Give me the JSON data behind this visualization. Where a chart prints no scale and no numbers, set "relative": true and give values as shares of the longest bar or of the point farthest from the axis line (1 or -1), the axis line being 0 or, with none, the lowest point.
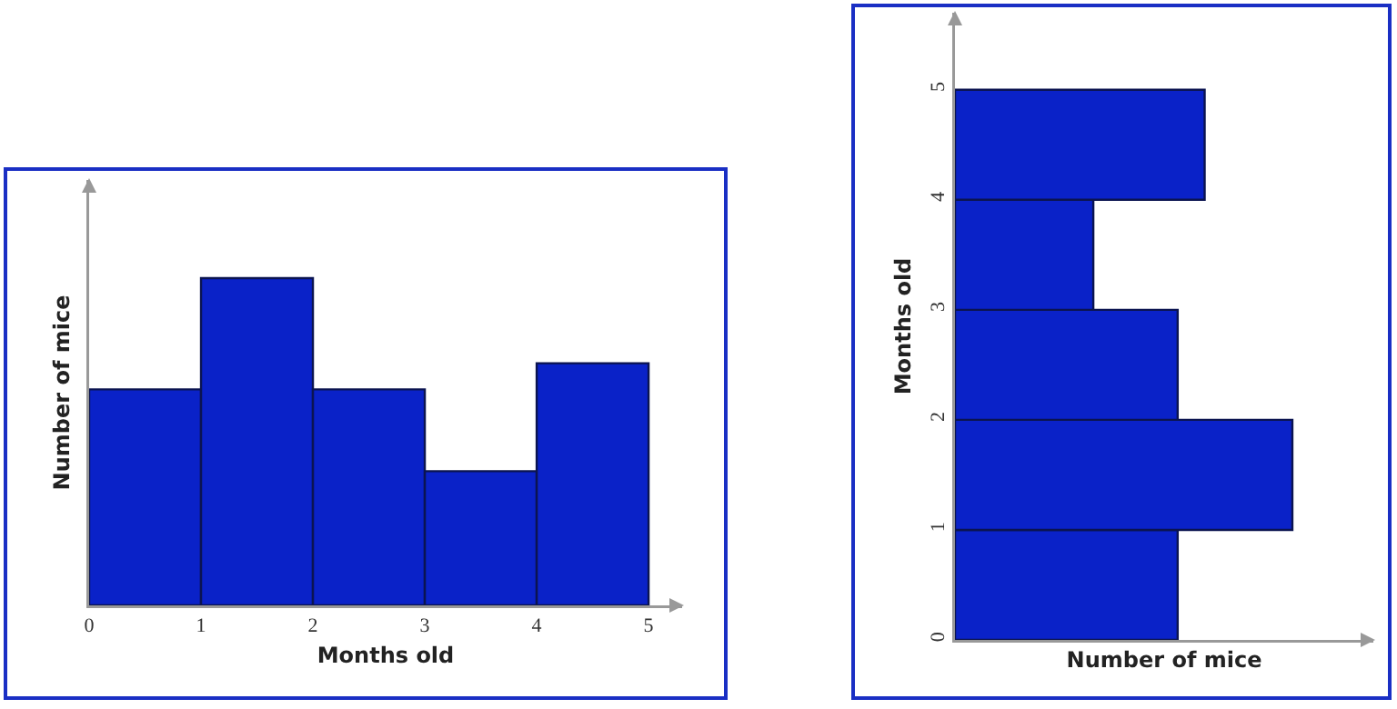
{
  "chart_data": [
    {
      "type": "bar",
      "x": [
        0.5,
        1.5,
        2.5,
        3.5,
        4.5
      ],
      "values": [
        0.66,
        1,
        0.66,
        0.41,
        0.74
      ],
      "relative": true,
      "color": "#0a22c8",
      "xlabel": "Months old",
      "ylabel": "Number of mice",
      "xlim": [
        0,
        5.3
      ],
      "xticks": [
        0,
        1,
        2,
        3,
        4,
        5
      ],
      "grid": false
    },
    {
      "type": "bar",
      "orientation": "horizontal",
      "x": [
        0.5,
        1.5,
        2.5,
        3.5,
        4.5
      ],
      "values": [
        0.66,
        1,
        0.66,
        0.41,
        0.74
      ],
      "relative": true,
      "color": "#0a22c8",
      "xlabel": "Number of mice",
      "ylabel": "Months old",
      "ylim": [
        0,
        5.7
      ],
      "yticks": [
        0,
        1,
        2,
        3,
        4,
        5
      ],
      "grid": false
    }
  ]
}
